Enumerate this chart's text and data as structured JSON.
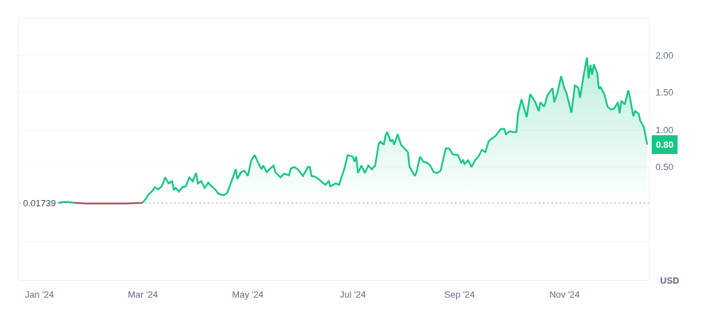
{
  "chart_data": {
    "type": "area",
    "series": [
      {
        "color": "#16c784",
        "x": [
          "2024-01-12",
          "2024-01-15",
          "2024-01-18",
          "2024-01-21"
        ],
        "values": [
          0.02,
          0.03,
          0.03,
          0.02
        ]
      },
      {
        "color": "#16c784",
        "x": [
          "2024-03-01",
          "2024-03-04",
          "2024-03-07",
          "2024-03-08",
          "2024-03-10",
          "2024-03-12",
          "2024-03-14",
          "2024-03-16",
          "2024-03-18",
          "2024-03-19",
          "2024-03-20",
          "2024-03-22",
          "2024-03-24",
          "2024-03-26",
          "2024-03-28",
          "2024-03-30",
          "2024-04-01",
          "2024-04-02",
          "2024-04-04",
          "2024-04-06",
          "2024-04-08",
          "2024-04-10",
          "2024-04-12",
          "2024-04-14",
          "2024-04-17",
          "2024-04-19",
          "2024-04-22",
          "2024-04-24",
          "2024-04-25",
          "2024-04-27",
          "2024-04-29",
          "2024-05-01",
          "2024-05-03",
          "2024-05-05",
          "2024-05-07",
          "2024-05-09",
          "2024-05-10",
          "2024-05-12",
          "2024-05-14",
          "2024-05-16",
          "2024-05-17",
          "2024-05-20",
          "2024-05-22",
          "2024-05-25",
          "2024-05-26",
          "2024-05-28",
          "2024-05-30",
          "2024-06-02",
          "2024-06-05",
          "2024-06-06",
          "2024-06-07",
          "2024-06-09",
          "2024-06-11",
          "2024-06-15",
          "2024-06-17",
          "2024-06-18",
          "2024-06-21",
          "2024-06-23",
          "2024-06-26",
          "2024-06-28",
          "2024-07-01",
          "2024-07-02",
          "2024-07-03",
          "2024-07-04",
          "2024-07-06",
          "2024-07-08",
          "2024-07-10",
          "2024-07-12",
          "2024-07-14",
          "2024-07-16",
          "2024-07-17",
          "2024-07-19",
          "2024-07-20",
          "2024-07-21",
          "2024-07-23",
          "2024-07-24",
          "2024-07-25",
          "2024-07-27",
          "2024-07-29",
          "2024-07-31",
          "2024-08-02",
          "2024-08-03",
          "2024-08-06",
          "2024-08-07",
          "2024-08-09",
          "2024-08-11",
          "2024-08-13",
          "2024-08-15",
          "2024-08-17",
          "2024-08-19",
          "2024-08-21",
          "2024-08-24",
          "2024-08-26",
          "2024-08-28",
          "2024-08-31",
          "2024-09-02",
          "2024-09-03",
          "2024-09-04",
          "2024-09-06",
          "2024-09-08",
          "2024-09-10",
          "2024-09-12",
          "2024-09-14",
          "2024-09-16",
          "2024-09-18",
          "2024-09-21",
          "2024-09-22",
          "2024-09-25",
          "2024-09-27",
          "2024-09-28",
          "2024-09-30",
          "2024-10-02",
          "2024-10-04",
          "2024-10-05",
          "2024-10-07",
          "2024-10-10",
          "2024-10-12",
          "2024-10-15",
          "2024-10-17",
          "2024-10-18",
          "2024-10-20",
          "2024-10-21",
          "2024-10-22",
          "2024-10-25",
          "2024-10-26",
          "2024-10-28",
          "2024-10-30",
          "2024-11-01",
          "2024-11-02",
          "2024-11-05",
          "2024-11-07",
          "2024-11-09",
          "2024-11-10",
          "2024-11-12",
          "2024-11-14",
          "2024-11-15",
          "2024-11-16",
          "2024-11-17",
          "2024-11-18",
          "2024-11-20",
          "2024-11-21",
          "2024-11-22",
          "2024-11-24",
          "2024-11-26",
          "2024-11-28",
          "2024-11-30",
          "2024-12-02",
          "2024-12-03",
          "2024-12-04",
          "2024-12-06",
          "2024-12-08",
          "2024-12-09",
          "2024-12-11",
          "2024-12-12",
          "2024-12-14",
          "2024-12-15",
          "2024-12-17",
          "2024-12-19"
        ],
        "values": [
          0.02,
          0.12,
          0.19,
          0.23,
          0.2,
          0.24,
          0.36,
          0.28,
          0.31,
          0.19,
          0.22,
          0.17,
          0.23,
          0.24,
          0.36,
          0.31,
          0.42,
          0.28,
          0.31,
          0.22,
          0.29,
          0.24,
          0.2,
          0.14,
          0.12,
          0.15,
          0.34,
          0.47,
          0.34,
          0.43,
          0.45,
          0.38,
          0.59,
          0.66,
          0.56,
          0.47,
          0.52,
          0.43,
          0.48,
          0.52,
          0.43,
          0.36,
          0.41,
          0.39,
          0.48,
          0.5,
          0.47,
          0.38,
          0.5,
          0.5,
          0.38,
          0.37,
          0.34,
          0.26,
          0.31,
          0.24,
          0.28,
          0.26,
          0.47,
          0.66,
          0.64,
          0.57,
          0.64,
          0.42,
          0.52,
          0.42,
          0.52,
          0.47,
          0.52,
          0.81,
          0.84,
          0.8,
          0.92,
          0.97,
          0.84,
          0.87,
          0.8,
          0.94,
          0.8,
          0.75,
          0.7,
          0.5,
          0.38,
          0.43,
          0.64,
          0.57,
          0.56,
          0.52,
          0.43,
          0.42,
          0.45,
          0.75,
          0.75,
          0.67,
          0.66,
          0.56,
          0.59,
          0.54,
          0.59,
          0.5,
          0.59,
          0.64,
          0.73,
          0.7,
          0.85,
          0.9,
          0.92,
          1.01,
          1.01,
          0.94,
          0.98,
          0.97,
          0.97,
          1.22,
          1.41,
          1.17,
          1.48,
          1.37,
          1.25,
          1.37,
          1.31,
          1.37,
          1.46,
          1.56,
          1.37,
          1.51,
          1.72,
          1.55,
          1.5,
          1.23,
          1.6,
          1.56,
          1.43,
          1.72,
          1.97,
          1.69,
          1.87,
          1.74,
          1.88,
          1.76,
          1.55,
          1.57,
          1.48,
          1.31,
          1.27,
          1.29,
          1.37,
          1.22,
          1.39,
          1.34,
          1.53,
          1.43,
          1.18,
          1.25,
          1.22,
          1.12,
          1.04,
          0.8
        ]
      },
      {
        "type": "line",
        "color": "#a25a5c",
        "x": [
          "2024-01-21",
          "2024-01-28",
          "2024-02-10",
          "2024-02-20",
          "2024-03-01"
        ],
        "values": [
          0.02,
          0.01,
          0.01,
          0.01,
          0.02
        ]
      }
    ],
    "xlim": [
      "2023-12-20",
      "2024-12-20"
    ],
    "xticks": [
      {
        "value": "2024-01-01",
        "label": "Jan '24"
      },
      {
        "value": "2024-03-01",
        "label": "Mar '24"
      },
      {
        "value": "2024-05-01",
        "label": "May '24"
      },
      {
        "value": "2024-07-01",
        "label": "Jul '24"
      },
      {
        "value": "2024-09-01",
        "label": "Sep '24"
      },
      {
        "value": "2024-11-01",
        "label": "Nov '24"
      }
    ],
    "ylim": [
      -1.02,
      2.49
    ],
    "yticks": [
      {
        "value": -0.5,
        "label": null
      },
      {
        "value": 0.5,
        "label": "0.50"
      },
      {
        "value": 1.0,
        "label": "1.00"
      },
      {
        "value": 1.5,
        "label": "1.50"
      },
      {
        "value": 2.0,
        "label": "2.00"
      }
    ],
    "ylabel": "USD",
    "grid": "y",
    "ref_lines": [
      {
        "axis": "y",
        "value": 0.01739,
        "label": "0.01739",
        "line_style": "dotted",
        "color": "#c3c9d3"
      }
    ],
    "annotations": [
      {
        "text": "0.80",
        "x": "2024-12-19",
        "y": 0.8
      }
    ]
  }
}
